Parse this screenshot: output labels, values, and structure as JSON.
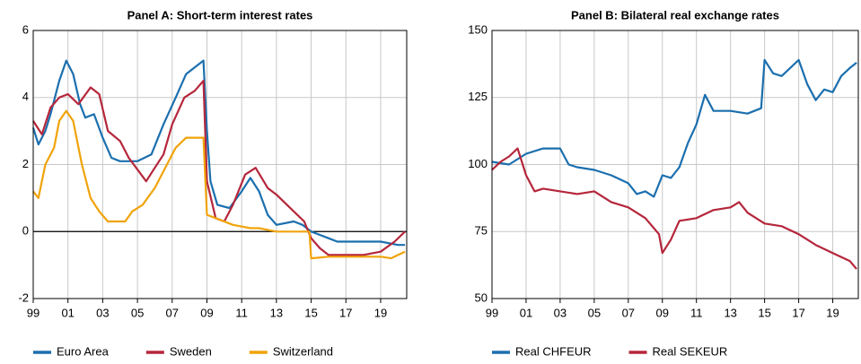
{
  "chart_data": [
    {
      "type": "line",
      "title": "Panel A: Short-term interest rates",
      "xlim": [
        1999,
        2020.5
      ],
      "ylim": [
        -2,
        6
      ],
      "xticks": [
        {
          "value": 1999,
          "label": "99"
        },
        {
          "value": 2001,
          "label": "01"
        },
        {
          "value": 2003,
          "label": "03"
        },
        {
          "value": 2005,
          "label": "05"
        },
        {
          "value": 2007,
          "label": "07"
        },
        {
          "value": 2009,
          "label": "09"
        },
        {
          "value": 2011,
          "label": "11"
        },
        {
          "value": 2013,
          "label": "13"
        },
        {
          "value": 2015,
          "label": "15"
        },
        {
          "value": 2017,
          "label": "17"
        },
        {
          "value": 2019,
          "label": "19"
        }
      ],
      "yticks": [
        -2,
        0,
        2,
        4,
        6
      ],
      "grid": true,
      "hline": 0,
      "legend": "bottom",
      "series": [
        {
          "name": "Euro Area",
          "color": "#1b6fae",
          "x": [
            1999,
            1999.3,
            1999.7,
            2000,
            2000.5,
            2000.9,
            2001.3,
            2001.7,
            2002,
            2002.5,
            2003,
            2003.5,
            2004,
            2005,
            2005.8,
            2006.5,
            2007.2,
            2007.8,
            2008.3,
            2008.8,
            2009,
            2009.2,
            2009.6,
            2010.3,
            2011,
            2011.5,
            2012,
            2012.5,
            2013,
            2014,
            2014.5,
            2015,
            2015.5,
            2016,
            2016.5,
            2018,
            2019,
            2020,
            2020.4
          ],
          "values": [
            3.1,
            2.6,
            3.0,
            3.5,
            4.5,
            5.1,
            4.7,
            3.8,
            3.4,
            3.5,
            2.8,
            2.2,
            2.1,
            2.1,
            2.3,
            3.2,
            4.0,
            4.7,
            4.9,
            5.1,
            3.0,
            1.5,
            0.8,
            0.7,
            1.2,
            1.6,
            1.2,
            0.5,
            0.2,
            0.3,
            0.2,
            0,
            -0.1,
            -0.2,
            -0.3,
            -0.3,
            -0.3,
            -0.4,
            -0.4
          ]
        },
        {
          "name": "Sweden",
          "color": "#b5263b",
          "x": [
            1999,
            1999.5,
            2000,
            2000.5,
            2001,
            2001.6,
            2002.3,
            2002.8,
            2003.3,
            2004,
            2004.5,
            2005.5,
            2006,
            2006.5,
            2007,
            2007.7,
            2008.3,
            2008.8,
            2009,
            2009.5,
            2010,
            2010.5,
            2011.2,
            2011.8,
            2012.5,
            2013,
            2014,
            2014.6,
            2015,
            2015.5,
            2016,
            2018,
            2019,
            2019.8,
            2020.4
          ],
          "values": [
            3.3,
            2.9,
            3.7,
            4.0,
            4.1,
            3.8,
            4.3,
            4.1,
            3.0,
            2.7,
            2.2,
            1.5,
            1.9,
            2.3,
            3.2,
            4.0,
            4.2,
            4.5,
            1.5,
            0.4,
            0.3,
            0.8,
            1.7,
            1.9,
            1.3,
            1.1,
            0.6,
            0.3,
            -0.2,
            -0.5,
            -0.7,
            -0.7,
            -0.6,
            -0.3,
            0
          ]
        },
        {
          "name": "Switzerland",
          "color": "#f0a30a",
          "x": [
            1999,
            1999.3,
            1999.7,
            2000.2,
            2000.5,
            2000.9,
            2001.3,
            2001.8,
            2002.3,
            2002.8,
            2003.3,
            2004.3,
            2004.7,
            2005.3,
            2006,
            2006.5,
            2007.2,
            2007.8,
            2008.5,
            2008.8,
            2009,
            2009.5,
            2010.5,
            2011.5,
            2012,
            2013,
            2014.9,
            2015,
            2016,
            2018,
            2019,
            2019.6,
            2020,
            2020.4
          ],
          "values": [
            1.2,
            1.0,
            2.0,
            2.5,
            3.3,
            3.6,
            3.3,
            2.0,
            1.0,
            0.6,
            0.3,
            0.3,
            0.6,
            0.8,
            1.3,
            1.8,
            2.5,
            2.8,
            2.8,
            2.8,
            0.5,
            0.4,
            0.2,
            0.1,
            0.1,
            0.0,
            0.0,
            -0.8,
            -0.75,
            -0.75,
            -0.75,
            -0.8,
            -0.7,
            -0.6
          ]
        }
      ]
    },
    {
      "type": "line",
      "title": "Panel B: Bilateral real exchange rates",
      "xlim": [
        1999,
        2020.5
      ],
      "ylim": [
        50,
        150
      ],
      "xticks": [
        {
          "value": 1999,
          "label": "99"
        },
        {
          "value": 2001,
          "label": "01"
        },
        {
          "value": 2003,
          "label": "03"
        },
        {
          "value": 2005,
          "label": "05"
        },
        {
          "value": 2007,
          "label": "07"
        },
        {
          "value": 2009,
          "label": "09"
        },
        {
          "value": 2011,
          "label": "11"
        },
        {
          "value": 2013,
          "label": "13"
        },
        {
          "value": 2015,
          "label": "15"
        },
        {
          "value": 2017,
          "label": "17"
        },
        {
          "value": 2019,
          "label": "19"
        }
      ],
      "yticks": [
        50,
        75,
        100,
        125,
        150
      ],
      "grid": true,
      "legend": "bottom",
      "series": [
        {
          "name": "Real CHFEUR",
          "color": "#1b6fae",
          "x": [
            1999,
            2000,
            2000.5,
            2001,
            2002,
            2003,
            2003.5,
            2004,
            2005,
            2006,
            2007,
            2007.5,
            2008,
            2008.5,
            2009,
            2009.5,
            2010,
            2010.5,
            2011,
            2011.5,
            2012,
            2013,
            2014,
            2014.8,
            2015,
            2015.5,
            2016,
            2017,
            2017.5,
            2018,
            2018.5,
            2019,
            2019.5,
            2020,
            2020.4
          ],
          "values": [
            101,
            100,
            102,
            104,
            106,
            106,
            100,
            99,
            98,
            96,
            93,
            89,
            90,
            88,
            96,
            95,
            99,
            108,
            115,
            126,
            120,
            120,
            119,
            121,
            139,
            134,
            133,
            139,
            130,
            124,
            128,
            127,
            133,
            136,
            138
          ]
        },
        {
          "name": "Real SEKEUR",
          "color": "#b5263b",
          "x": [
            1999,
            1999.5,
            2000,
            2000.5,
            2001,
            2001.5,
            2002,
            2003,
            2004,
            2005,
            2006,
            2007,
            2008,
            2008.8,
            2009,
            2009.5,
            2010,
            2011,
            2012,
            2013,
            2013.5,
            2014,
            2015,
            2016,
            2017,
            2018,
            2019,
            2020,
            2020.4
          ],
          "values": [
            98,
            101,
            103,
            106,
            96,
            90,
            91,
            90,
            89,
            90,
            86,
            84,
            80,
            74,
            67,
            72,
            79,
            80,
            83,
            84,
            86,
            82,
            78,
            77,
            74,
            70,
            67,
            64,
            61
          ]
        }
      ]
    }
  ]
}
